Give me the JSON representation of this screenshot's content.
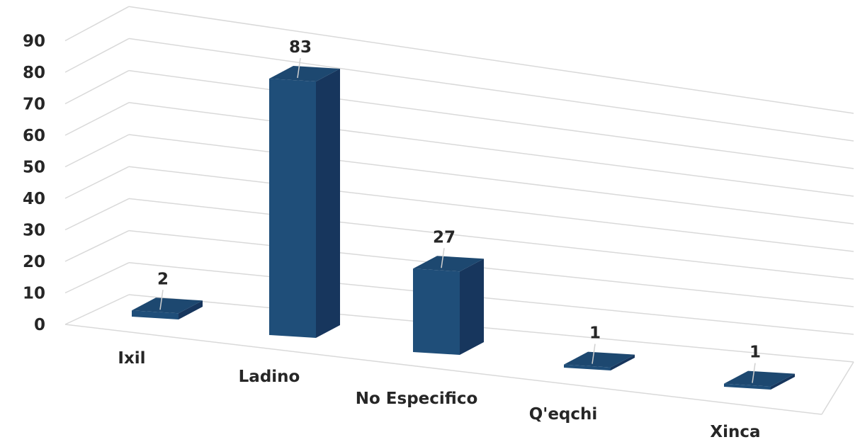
{
  "chart_data": {
    "type": "bar",
    "style": "3d-column",
    "categories": [
      "Ixil",
      "Ladino",
      "No Especifico",
      "Q'eqchi",
      "Xinca"
    ],
    "values": [
      2,
      83,
      27,
      1,
      1
    ],
    "ylim": [
      0,
      90
    ],
    "y_ticks": [
      "0",
      "10",
      "20",
      "30",
      "40",
      "50",
      "60",
      "70",
      "80",
      "90"
    ],
    "grid": true,
    "legend": "none",
    "colors": {
      "front": "#1f4e79",
      "side": "#17365d",
      "top": "#1d4870"
    }
  }
}
